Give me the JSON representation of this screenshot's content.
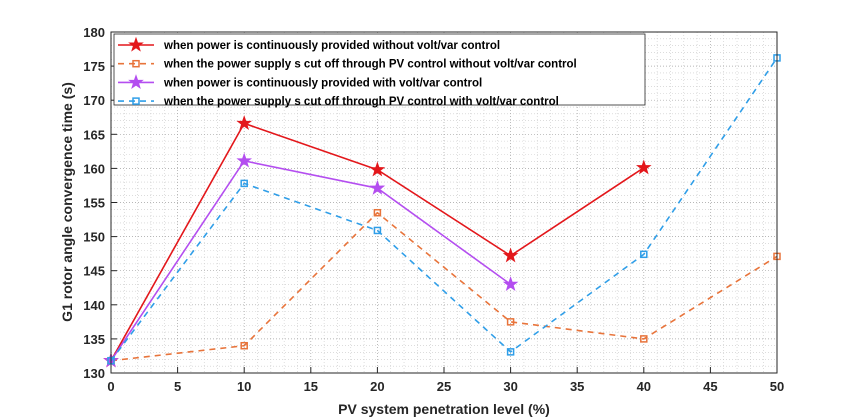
{
  "chart_data": {
    "type": "line",
    "xlabel": "PV system penetration level (%)",
    "ylabel": "G1 rotor angle convergence time (s)",
    "xlim": [
      0,
      50
    ],
    "ylim": [
      130,
      180
    ],
    "xticks": [
      0,
      5,
      10,
      15,
      20,
      25,
      30,
      35,
      40,
      45,
      50
    ],
    "yticks": [
      130,
      135,
      140,
      145,
      150,
      155,
      160,
      165,
      170,
      175,
      180
    ],
    "grid": "minor dotted",
    "legend_position": "top-left",
    "series": [
      {
        "name": "when power is continuously provided without volt/var control",
        "color": "#e3171b",
        "line": "solid",
        "marker": "star",
        "x": [
          0,
          10,
          20,
          30,
          40
        ],
        "y": [
          131.8,
          166.6,
          159.8,
          147.2,
          160.1
        ]
      },
      {
        "name": "when the power supply s cut off through PV control without volt/var control",
        "color": "#e8743b",
        "line": "dashed",
        "marker": "square",
        "x": [
          0,
          10,
          20,
          30,
          40,
          50
        ],
        "y": [
          131.8,
          134.0,
          153.5,
          137.5,
          135.0,
          147.1
        ]
      },
      {
        "name": "when power is continuously provided with volt/var control",
        "color": "#b44ef0",
        "line": "solid",
        "marker": "star",
        "x": [
          0,
          10,
          20,
          30
        ],
        "y": [
          131.8,
          161.1,
          157.1,
          143.0
        ]
      },
      {
        "name": "when the power supply s cut off through PV control with volt/var control",
        "color": "#2f9ee8",
        "line": "dashed",
        "marker": "square",
        "x": [
          0,
          10,
          20,
          30,
          40,
          50
        ],
        "y": [
          131.8,
          157.8,
          150.9,
          133.1,
          147.4,
          176.2
        ]
      }
    ]
  }
}
